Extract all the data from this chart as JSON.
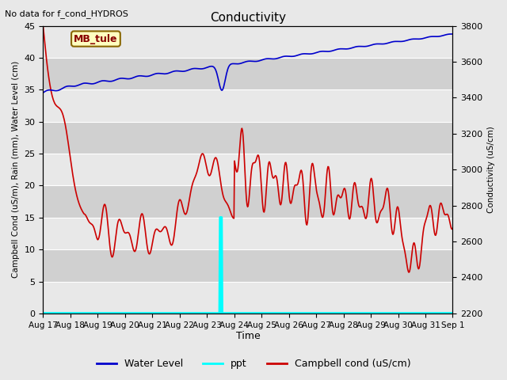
{
  "title": "Conductivity",
  "top_left_text": "No data for f_cond_HYDROS",
  "box_label": "MB_tule",
  "ylabel_left": "Campbell Cond (uS/m), Rain (mm), Water Level (cm)",
  "ylabel_right": "Conductivity (uS/cm)",
  "xlabel": "Time",
  "ylim_left": [
    0,
    45
  ],
  "ylim_right": [
    2200,
    3800
  ],
  "bg_color": "#e8e8e8",
  "plot_bg_light": "#f0f0f0",
  "plot_bg_dark": "#dcdcdc",
  "water_level_color": "#0000cc",
  "ppt_color": "#00ffff",
  "campbell_color": "#cc0000",
  "water_level_linewidth": 1.2,
  "ppt_linewidth": 2.5,
  "campbell_linewidth": 1.2,
  "legend_labels": [
    "Water Level",
    "ppt",
    "Campbell cond (uS/cm)"
  ],
  "x_tick_labels": [
    "Aug 17",
    "Aug 18",
    "Aug 19",
    "Aug 20",
    "Aug 21",
    "Aug 22",
    "Aug 23",
    "Aug 24",
    "Aug 25",
    "Aug 26",
    "Aug 27",
    "Aug 28",
    "Aug 29",
    "Aug 30",
    "Aug 31",
    "Sep 1"
  ],
  "yticks_left": [
    0,
    5,
    10,
    15,
    20,
    25,
    30,
    35,
    40,
    45
  ],
  "yticks_right": [
    2200,
    2400,
    2600,
    2800,
    3000,
    3200,
    3400,
    3600,
    3800
  ]
}
